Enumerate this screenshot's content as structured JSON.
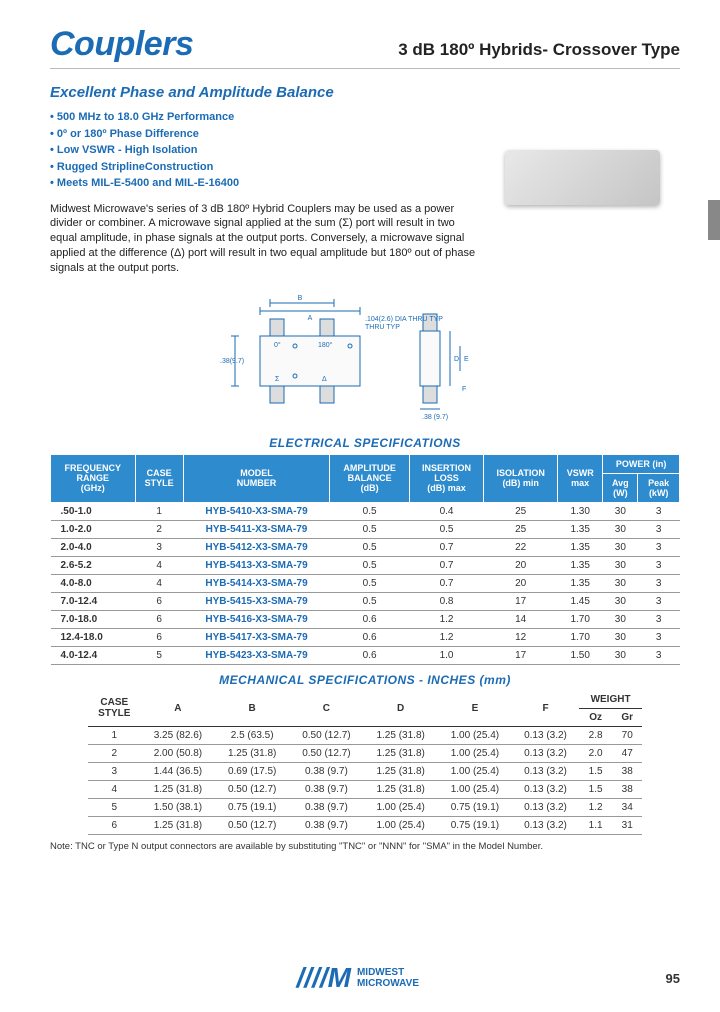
{
  "header": {
    "title": "Couplers",
    "subtitle": "3 dB  180º Hybrids- Crossover Type"
  },
  "tagline": "Excellent Phase and Amplitude Balance",
  "bullets": [
    "500 MHz to 18.0 GHz Performance",
    "0º or 180º Phase Difference",
    "Low VSWR - High Isolation",
    "Rugged StriplineConstruction",
    "Meets MIL-E-5400 and MIL-E-16400"
  ],
  "body_text": "Midwest Microwave's series of 3 dB 180º Hybrid Couplers may be used as a power divider or combiner.  A microwave signal applied at the sum (Σ)  port will result in two equal amplitude, in phase signals at the output ports.  Conversely, a microwave signal applied at the difference (Δ) port will result in two equal amplitude but 180º out of phase signals at the output ports.",
  "diagram": {
    "dim_labels": [
      ".38(9.7)",
      "C",
      "B",
      "A",
      "D",
      "E",
      "F",
      ".38 (9.7)"
    ],
    "callout": ".104(2.6) DIA THRU TYP",
    "port_labels": [
      "0°",
      "180°",
      "Σ",
      "Δ"
    ]
  },
  "elec_spec": {
    "title": "ELECTRICAL  SPECIFICATIONS",
    "headers": [
      "FREQUENCY RANGE (GHz)",
      "CASE STYLE",
      "MODEL NUMBER",
      "AMPLITUDE BALANCE (dB)",
      "INSERTION LOSS (dB) max",
      "ISOLATION (dB) min",
      "VSWR max",
      "POWER (in) Avg (W)",
      "POWER (in) Peak (kW)"
    ],
    "rows": [
      [
        ".50-1.0",
        "1",
        "HYB-5410-X3-SMA-79",
        "0.5",
        "0.4",
        "25",
        "1.30",
        "30",
        "3"
      ],
      [
        "1.0-2.0",
        "2",
        "HYB-5411-X3-SMA-79",
        "0.5",
        "0.5",
        "25",
        "1.35",
        "30",
        "3"
      ],
      [
        "2.0-4.0",
        "3",
        "HYB-5412-X3-SMA-79",
        "0.5",
        "0.7",
        "22",
        "1.35",
        "30",
        "3"
      ],
      [
        "2.6-5.2",
        "4",
        "HYB-5413-X3-SMA-79",
        "0.5",
        "0.7",
        "20",
        "1.35",
        "30",
        "3"
      ],
      [
        "4.0-8.0",
        "4",
        "HYB-5414-X3-SMA-79",
        "0.5",
        "0.7",
        "20",
        "1.35",
        "30",
        "3"
      ],
      [
        "7.0-12.4",
        "6",
        "HYB-5415-X3-SMA-79",
        "0.5",
        "0.8",
        "17",
        "1.45",
        "30",
        "3"
      ],
      [
        "7.0-18.0",
        "6",
        "HYB-5416-X3-SMA-79",
        "0.6",
        "1.2",
        "14",
        "1.70",
        "30",
        "3"
      ],
      [
        "12.4-18.0",
        "6",
        "HYB-5417-X3-SMA-79",
        "0.6",
        "1.2",
        "12",
        "1.70",
        "30",
        "3"
      ],
      [
        "4.0-12.4",
        "5",
        "HYB-5423-X3-SMA-79",
        "0.6",
        "1.0",
        "17",
        "1.50",
        "30",
        "3"
      ]
    ]
  },
  "mech_spec": {
    "title": "MECHANICAL  SPECIFICATIONS - INCHES (mm)",
    "headers": [
      "CASE STYLE",
      "A",
      "B",
      "C",
      "D",
      "E",
      "F",
      "WEIGHT Oz",
      "WEIGHT Gr"
    ],
    "rows": [
      [
        "1",
        "3.25 (82.6)",
        "2.5 (63.5)",
        "0.50 (12.7)",
        "1.25 (31.8)",
        "1.00 (25.4)",
        "0.13 (3.2)",
        "2.8",
        "70"
      ],
      [
        "2",
        "2.00 (50.8)",
        "1.25 (31.8)",
        "0.50 (12.7)",
        "1.25 (31.8)",
        "1.00 (25.4)",
        "0.13 (3.2)",
        "2.0",
        "47"
      ],
      [
        "3",
        "1.44 (36.5)",
        "0.69 (17.5)",
        "0.38 (9.7)",
        "1.25 (31.8)",
        "1.00 (25.4)",
        "0.13 (3.2)",
        "1.5",
        "38"
      ],
      [
        "4",
        "1.25 (31.8)",
        "0.50 (12.7)",
        "0.38 (9.7)",
        "1.25 (31.8)",
        "1.00 (25.4)",
        "0.13 (3.2)",
        "1.5",
        "38"
      ],
      [
        "5",
        "1.50 (38.1)",
        "0.75 (19.1)",
        "0.38 (9.7)",
        "1.00 (25.4)",
        "0.75 (19.1)",
        "0.13 (3.2)",
        "1.2",
        "34"
      ],
      [
        "6",
        "1.25 (31.8)",
        "0.50 (12.7)",
        "0.38 (9.7)",
        "1.00 (25.4)",
        "0.75 (19.1)",
        "0.13 (3.2)",
        "1.1",
        "31"
      ]
    ]
  },
  "note": "Note: TNC or Type N output connectors are available by substituting \"TNC\" or \"NNN\" for \"SMA\" in the Model Number.",
  "footer": {
    "brand_top": "MIDWEST",
    "brand_bottom": "MICROWAVE",
    "page": "95"
  },
  "colors": {
    "blue": "#1b6bb5",
    "header_blue": "#2e8bce"
  }
}
